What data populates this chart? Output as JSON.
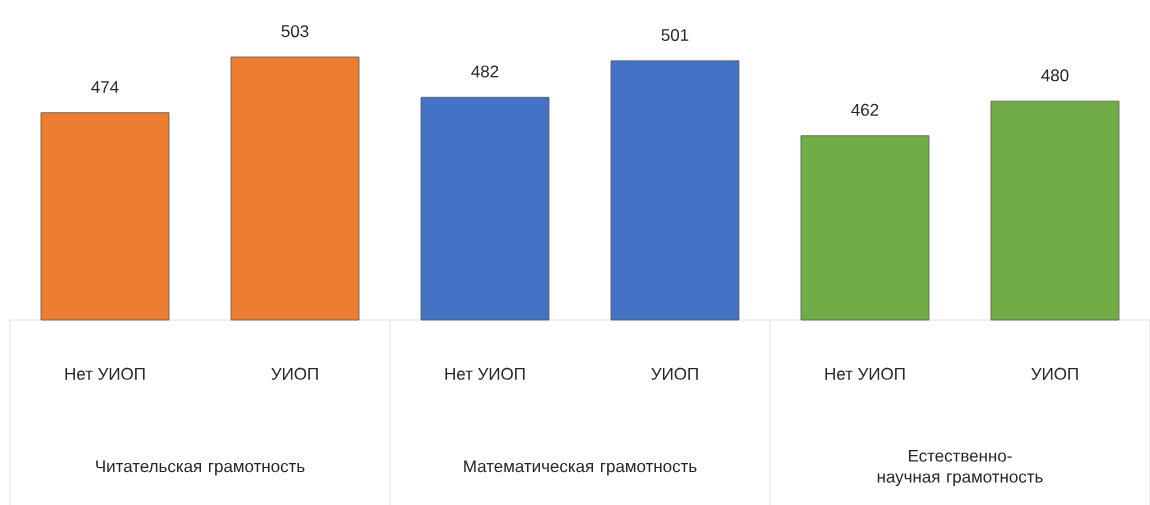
{
  "chart_data": {
    "type": "bar",
    "categories": [
      "Нет УИОП",
      "УИОП",
      "Нет УИОП",
      "УИОП",
      "Нет УИОП",
      "УИОП"
    ],
    "values": [
      474,
      503,
      482,
      501,
      462,
      480
    ],
    "colors": [
      "#ed7d31",
      "#ed7d31",
      "#4472c4",
      "#4472c4",
      "#70ad47",
      "#70ad47"
    ],
    "annotations": [
      "Читательская грамотность",
      "Математическая грамотность",
      "Естественно-научная грамотность"
    ],
    "ylim": [
      366,
      503
    ],
    "data_labels": true
  }
}
